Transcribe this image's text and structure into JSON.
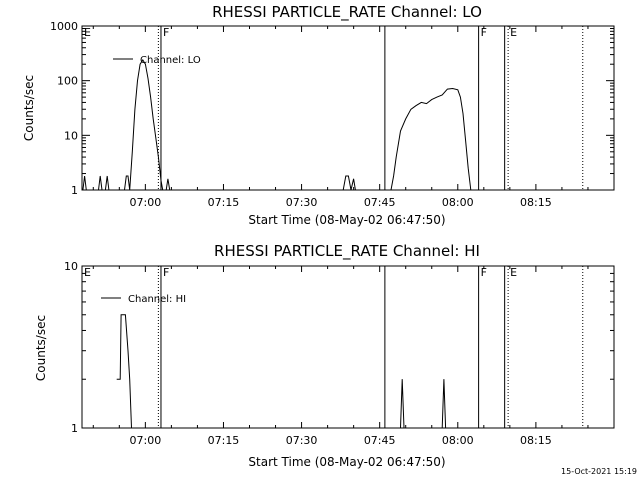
{
  "chart_data": [
    {
      "type": "line",
      "title": "RHESSI PARTICLE_RATE Channel: LO",
      "xlabel": "Start Time (08-May-02 06:47:50)",
      "ylabel": "Counts/sec",
      "yscale": "log",
      "ylim": [
        1,
        1000
      ],
      "xlim": [
        "06:47:50",
        "08:30:00"
      ],
      "xticks": [
        "07:00",
        "07:15",
        "07:30",
        "07:45",
        "08:00",
        "08:15"
      ],
      "yticks": [
        "1",
        "10",
        "100",
        "1000"
      ],
      "series": [
        {
          "name": "Channel: LO",
          "points": [
            [
              "06:48:00",
              1
            ],
            [
              "06:48:20",
              1.8
            ],
            [
              "06:48:40",
              1
            ],
            [
              "06:51:00",
              1
            ],
            [
              "06:51:20",
              1.8
            ],
            [
              "06:51:40",
              1
            ],
            [
              "06:52:20",
              1
            ],
            [
              "06:52:40",
              1.8
            ],
            [
              "06:53:00",
              1
            ],
            [
              "06:56:00",
              1
            ],
            [
              "06:56:20",
              1.8
            ],
            [
              "06:56:40",
              1.8
            ],
            [
              "06:57:00",
              1
            ],
            [
              "06:57:30",
              5
            ],
            [
              "06:58:00",
              30
            ],
            [
              "06:58:30",
              100
            ],
            [
              "06:59:00",
              200
            ],
            [
              "06:59:30",
              240
            ],
            [
              "07:00:00",
              200
            ],
            [
              "07:00:30",
              110
            ],
            [
              "07:01:00",
              50
            ],
            [
              "07:01:30",
              20
            ],
            [
              "07:02:00",
              9
            ],
            [
              "07:02:30",
              4
            ],
            [
              "07:03:00",
              1.5
            ],
            [
              "07:03:20",
              1
            ],
            [
              "07:04:00",
              1
            ],
            [
              "07:04:20",
              1.6
            ],
            [
              "07:04:40",
              1
            ],
            [
              "07:38:00",
              1
            ],
            [
              "07:38:30",
              1.8
            ],
            [
              "07:39:00",
              1.8
            ],
            [
              "07:39:30",
              1
            ],
            [
              "07:40:00",
              1.6
            ],
            [
              "07:40:20",
              1
            ],
            [
              "07:47:10",
              1
            ],
            [
              "07:47:40",
              1.8
            ],
            [
              "07:48:10",
              4
            ],
            [
              "07:49:00",
              12
            ],
            [
              "07:50:00",
              20
            ],
            [
              "07:51:00",
              30
            ],
            [
              "07:52:00",
              35
            ],
            [
              "07:53:00",
              40
            ],
            [
              "07:54:00",
              38
            ],
            [
              "07:55:00",
              45
            ],
            [
              "07:56:00",
              50
            ],
            [
              "07:57:00",
              55
            ],
            [
              "07:58:00",
              70
            ],
            [
              "07:59:00",
              72
            ],
            [
              "08:00:00",
              68
            ],
            [
              "08:00:30",
              50
            ],
            [
              "08:01:00",
              25
            ],
            [
              "08:01:30",
              8
            ],
            [
              "08:02:00",
              2.5
            ],
            [
              "08:02:30",
              1
            ]
          ]
        }
      ]
    },
    {
      "type": "line",
      "title": "RHESSI PARTICLE_RATE Channel: HI",
      "xlabel": "Start Time (08-May-02 06:47:50)",
      "ylabel": "Counts/sec",
      "yscale": "log",
      "ylim": [
        1,
        10
      ],
      "xlim": [
        "06:47:50",
        "08:30:00"
      ],
      "xticks": [
        "07:00",
        "07:15",
        "07:30",
        "07:45",
        "08:00",
        "08:15"
      ],
      "yticks": [
        "1",
        "10"
      ],
      "series": [
        {
          "name": "Channel: HI",
          "points": [
            [
              "06:54:30",
              2
            ],
            [
              "06:55:10",
              2
            ],
            [
              "06:55:20",
              5
            ],
            [
              "06:56:10",
              5
            ],
            [
              "06:56:40",
              3
            ],
            [
              "06:57:00",
              2
            ],
            [
              "06:57:20",
              1
            ],
            [
              "07:49:00",
              1
            ],
            [
              "07:49:20",
              2
            ],
            [
              "07:49:40",
              1
            ],
            [
              "07:57:00",
              1
            ],
            [
              "07:57:20",
              2
            ],
            [
              "07:57:40",
              1
            ]
          ]
        }
      ]
    }
  ],
  "markers": {
    "solid": [
      "07:03:00",
      "07:46:00",
      "08:04:00",
      "08:09:00"
    ],
    "dotted": [
      "07:02:30",
      "08:09:40",
      "08:24:00"
    ],
    "letters": [
      {
        "t": "06:47:50",
        "label": "E"
      },
      {
        "t": "07:03:00",
        "label": "F"
      },
      {
        "t": "08:04:00",
        "label": "F"
      },
      {
        "t": "08:09:40",
        "label": "E"
      }
    ]
  },
  "timestamp": "15-Oct-2021 15:19"
}
